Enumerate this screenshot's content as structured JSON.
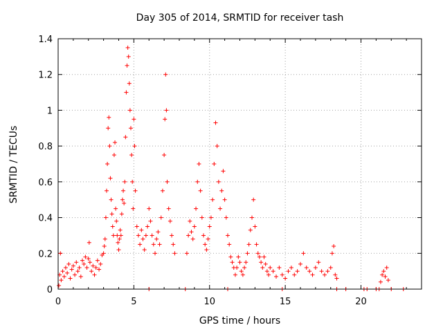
{
  "chart_data": {
    "type": "scatter",
    "title": "Day 305 of 2014, SRMTID for receiver tash",
    "xlabel": "GPS time / hours",
    "ylabel": "SRMTID / TECUs",
    "xlim": [
      0,
      24
    ],
    "ylim": [
      0,
      1.4
    ],
    "x_ticks": [
      0,
      5,
      10,
      15,
      20
    ],
    "y_ticks": [
      0,
      0.2,
      0.4,
      0.6,
      0.8,
      1,
      1.2,
      1.4
    ],
    "x_tick_labels": [
      "0",
      "5",
      "10",
      "15",
      "20"
    ],
    "y_tick_labels": [
      "0",
      "0.2",
      "0.4",
      "0.6",
      "0.8",
      "1",
      "1.2",
      "1.4"
    ],
    "grid": true,
    "marker": "+",
    "color": "#ff0000",
    "series": [
      {
        "name": "SRMTID",
        "points": [
          [
            0.05,
            0.02
          ],
          [
            0.1,
            0.08
          ],
          [
            0.15,
            0.2
          ],
          [
            0.2,
            0.05
          ],
          [
            0.3,
            0.1
          ],
          [
            0.4,
            0.07
          ],
          [
            0.5,
            0.12
          ],
          [
            0.6,
            0.09
          ],
          [
            0.7,
            0.14
          ],
          [
            0.8,
            0.06
          ],
          [
            0.9,
            0.11
          ],
          [
            1.0,
            0.13
          ],
          [
            1.1,
            0.08
          ],
          [
            1.2,
            0.15
          ],
          [
            1.3,
            0.1
          ],
          [
            1.4,
            0.12
          ],
          [
            1.5,
            0.07
          ],
          [
            1.6,
            0.16
          ],
          [
            1.7,
            0.14
          ],
          [
            1.8,
            0.18
          ],
          [
            1.9,
            0.12
          ],
          [
            2.0,
            0.17
          ],
          [
            2.05,
            0.26
          ],
          [
            2.1,
            0.15
          ],
          [
            2.2,
            0.1
          ],
          [
            2.3,
            0.13
          ],
          [
            2.4,
            0.08
          ],
          [
            2.5,
            0.12
          ],
          [
            2.6,
            0.16
          ],
          [
            2.7,
            0.11
          ],
          [
            2.8,
            0.14
          ],
          [
            2.9,
            0.19
          ],
          [
            3.0,
            0.2
          ],
          [
            3.05,
            0.24
          ],
          [
            3.1,
            0.28
          ],
          [
            3.15,
            0.4
          ],
          [
            3.2,
            0.55
          ],
          [
            3.25,
            0.7
          ],
          [
            3.3,
            0.9
          ],
          [
            3.35,
            0.96
          ],
          [
            3.4,
            0.8
          ],
          [
            3.45,
            0.62
          ],
          [
            3.5,
            0.5
          ],
          [
            3.55,
            0.42
          ],
          [
            3.6,
            0.35
          ],
          [
            3.65,
            0.3
          ],
          [
            3.7,
            0.75
          ],
          [
            3.75,
            0.82
          ],
          [
            3.8,
            0.45
          ],
          [
            3.85,
            0.38
          ],
          [
            3.9,
            0.3
          ],
          [
            3.95,
            0.26
          ],
          [
            4.0,
            0.22
          ],
          [
            4.05,
            0.28
          ],
          [
            4.1,
            0.33
          ],
          [
            4.15,
            0.3
          ],
          [
            4.2,
            0.42
          ],
          [
            4.25,
            0.5
          ],
          [
            4.3,
            0.55
          ],
          [
            4.35,
            0.48
          ],
          [
            4.4,
            0.6
          ],
          [
            4.45,
            0.85
          ],
          [
            4.5,
            1.1
          ],
          [
            4.55,
            1.25
          ],
          [
            4.6,
            1.35
          ],
          [
            4.65,
            1.3
          ],
          [
            4.7,
            1.15
          ],
          [
            4.75,
            1.0
          ],
          [
            4.8,
            0.9
          ],
          [
            4.85,
            0.75
          ],
          [
            4.9,
            0.6
          ],
          [
            4.95,
            0.45
          ],
          [
            5.0,
            0.95
          ],
          [
            5.05,
            0.8
          ],
          [
            5.1,
            0.55
          ],
          [
            5.2,
            0.35
          ],
          [
            5.3,
            0.3
          ],
          [
            5.4,
            0.25
          ],
          [
            5.5,
            0.33
          ],
          [
            5.6,
            0.28
          ],
          [
            5.7,
            0.22
          ],
          [
            5.8,
            0.3
          ],
          [
            5.9,
            0.35
          ],
          [
            6.0,
            0.45
          ],
          [
            6.1,
            0.38
          ],
          [
            6.2,
            0.3
          ],
          [
            6.3,
            0.25
          ],
          [
            6.4,
            0.2
          ],
          [
            6.5,
            0.28
          ],
          [
            6.6,
            0.32
          ],
          [
            6.7,
            0.25
          ],
          [
            6.8,
            0.4
          ],
          [
            6.9,
            0.55
          ],
          [
            7.0,
            0.75
          ],
          [
            7.05,
            0.95
          ],
          [
            7.1,
            1.2
          ],
          [
            7.15,
            1.0
          ],
          [
            7.2,
            0.6
          ],
          [
            7.3,
            0.45
          ],
          [
            7.4,
            0.38
          ],
          [
            7.5,
            0.3
          ],
          [
            7.6,
            0.25
          ],
          [
            7.7,
            0.2
          ],
          [
            8.5,
            0.2
          ],
          [
            8.6,
            0.3
          ],
          [
            8.7,
            0.38
          ],
          [
            8.8,
            0.32
          ],
          [
            8.9,
            0.28
          ],
          [
            9.0,
            0.35
          ],
          [
            9.1,
            0.45
          ],
          [
            9.2,
            0.6
          ],
          [
            9.3,
            0.7
          ],
          [
            9.4,
            0.55
          ],
          [
            9.5,
            0.4
          ],
          [
            9.6,
            0.3
          ],
          [
            9.7,
            0.25
          ],
          [
            9.8,
            0.22
          ],
          [
            9.9,
            0.28
          ],
          [
            10.0,
            0.35
          ],
          [
            10.1,
            0.4
          ],
          [
            10.2,
            0.5
          ],
          [
            10.3,
            0.7
          ],
          [
            10.4,
            0.93
          ],
          [
            10.5,
            0.8
          ],
          [
            10.6,
            0.6
          ],
          [
            10.7,
            0.45
          ],
          [
            10.8,
            0.55
          ],
          [
            10.9,
            0.66
          ],
          [
            11.0,
            0.5
          ],
          [
            11.1,
            0.4
          ],
          [
            11.2,
            0.3
          ],
          [
            11.3,
            0.25
          ],
          [
            11.4,
            0.18
          ],
          [
            11.5,
            0.15
          ],
          [
            11.6,
            0.12
          ],
          [
            11.7,
            0.08
          ],
          [
            11.8,
            0.12
          ],
          [
            11.9,
            0.18
          ],
          [
            12.0,
            0.15
          ],
          [
            12.1,
            0.1
          ],
          [
            12.2,
            0.08
          ],
          [
            12.3,
            0.12
          ],
          [
            12.4,
            0.15
          ],
          [
            12.5,
            0.2
          ],
          [
            12.6,
            0.25
          ],
          [
            12.7,
            0.33
          ],
          [
            12.8,
            0.4
          ],
          [
            12.9,
            0.5
          ],
          [
            13.0,
            0.35
          ],
          [
            13.1,
            0.25
          ],
          [
            13.2,
            0.2
          ],
          [
            13.3,
            0.18
          ],
          [
            13.4,
            0.15
          ],
          [
            13.5,
            0.12
          ],
          [
            13.6,
            0.18
          ],
          [
            13.7,
            0.14
          ],
          [
            13.8,
            0.1
          ],
          [
            13.9,
            0.08
          ],
          [
            14.0,
            0.12
          ],
          [
            14.2,
            0.1
          ],
          [
            14.4,
            0.07
          ],
          [
            14.6,
            0.12
          ],
          [
            14.8,
            0.08
          ],
          [
            15.0,
            0.06
          ],
          [
            15.2,
            0.1
          ],
          [
            15.4,
            0.12
          ],
          [
            15.6,
            0.08
          ],
          [
            15.8,
            0.1
          ],
          [
            16.0,
            0.14
          ],
          [
            16.2,
            0.2
          ],
          [
            16.4,
            0.12
          ],
          [
            16.6,
            0.1
          ],
          [
            16.8,
            0.08
          ],
          [
            17.0,
            0.12
          ],
          [
            17.2,
            0.15
          ],
          [
            17.4,
            0.1
          ],
          [
            17.6,
            0.08
          ],
          [
            17.8,
            0.1
          ],
          [
            18.0,
            0.12
          ],
          [
            18.1,
            0.2
          ],
          [
            18.2,
            0.24
          ],
          [
            18.3,
            0.08
          ],
          [
            18.4,
            0.06
          ],
          [
            21.3,
            0.04
          ],
          [
            21.4,
            0.08
          ],
          [
            21.5,
            0.1
          ],
          [
            21.6,
            0.07
          ],
          [
            21.7,
            0.12
          ],
          [
            21.8,
            0.05
          ],
          [
            6.0,
            0.0
          ],
          [
            8.4,
            0.0
          ],
          [
            11.2,
            0.0
          ],
          [
            14.8,
            0.0
          ],
          [
            18.4,
            0.0
          ],
          [
            19.0,
            0.0
          ],
          [
            20.2,
            0.0
          ],
          [
            20.4,
            0.0
          ],
          [
            21.0,
            0.0
          ],
          [
            21.2,
            0.0
          ],
          [
            22.0,
            0.0
          ],
          [
            22.8,
            0.0
          ]
        ]
      }
    ]
  }
}
